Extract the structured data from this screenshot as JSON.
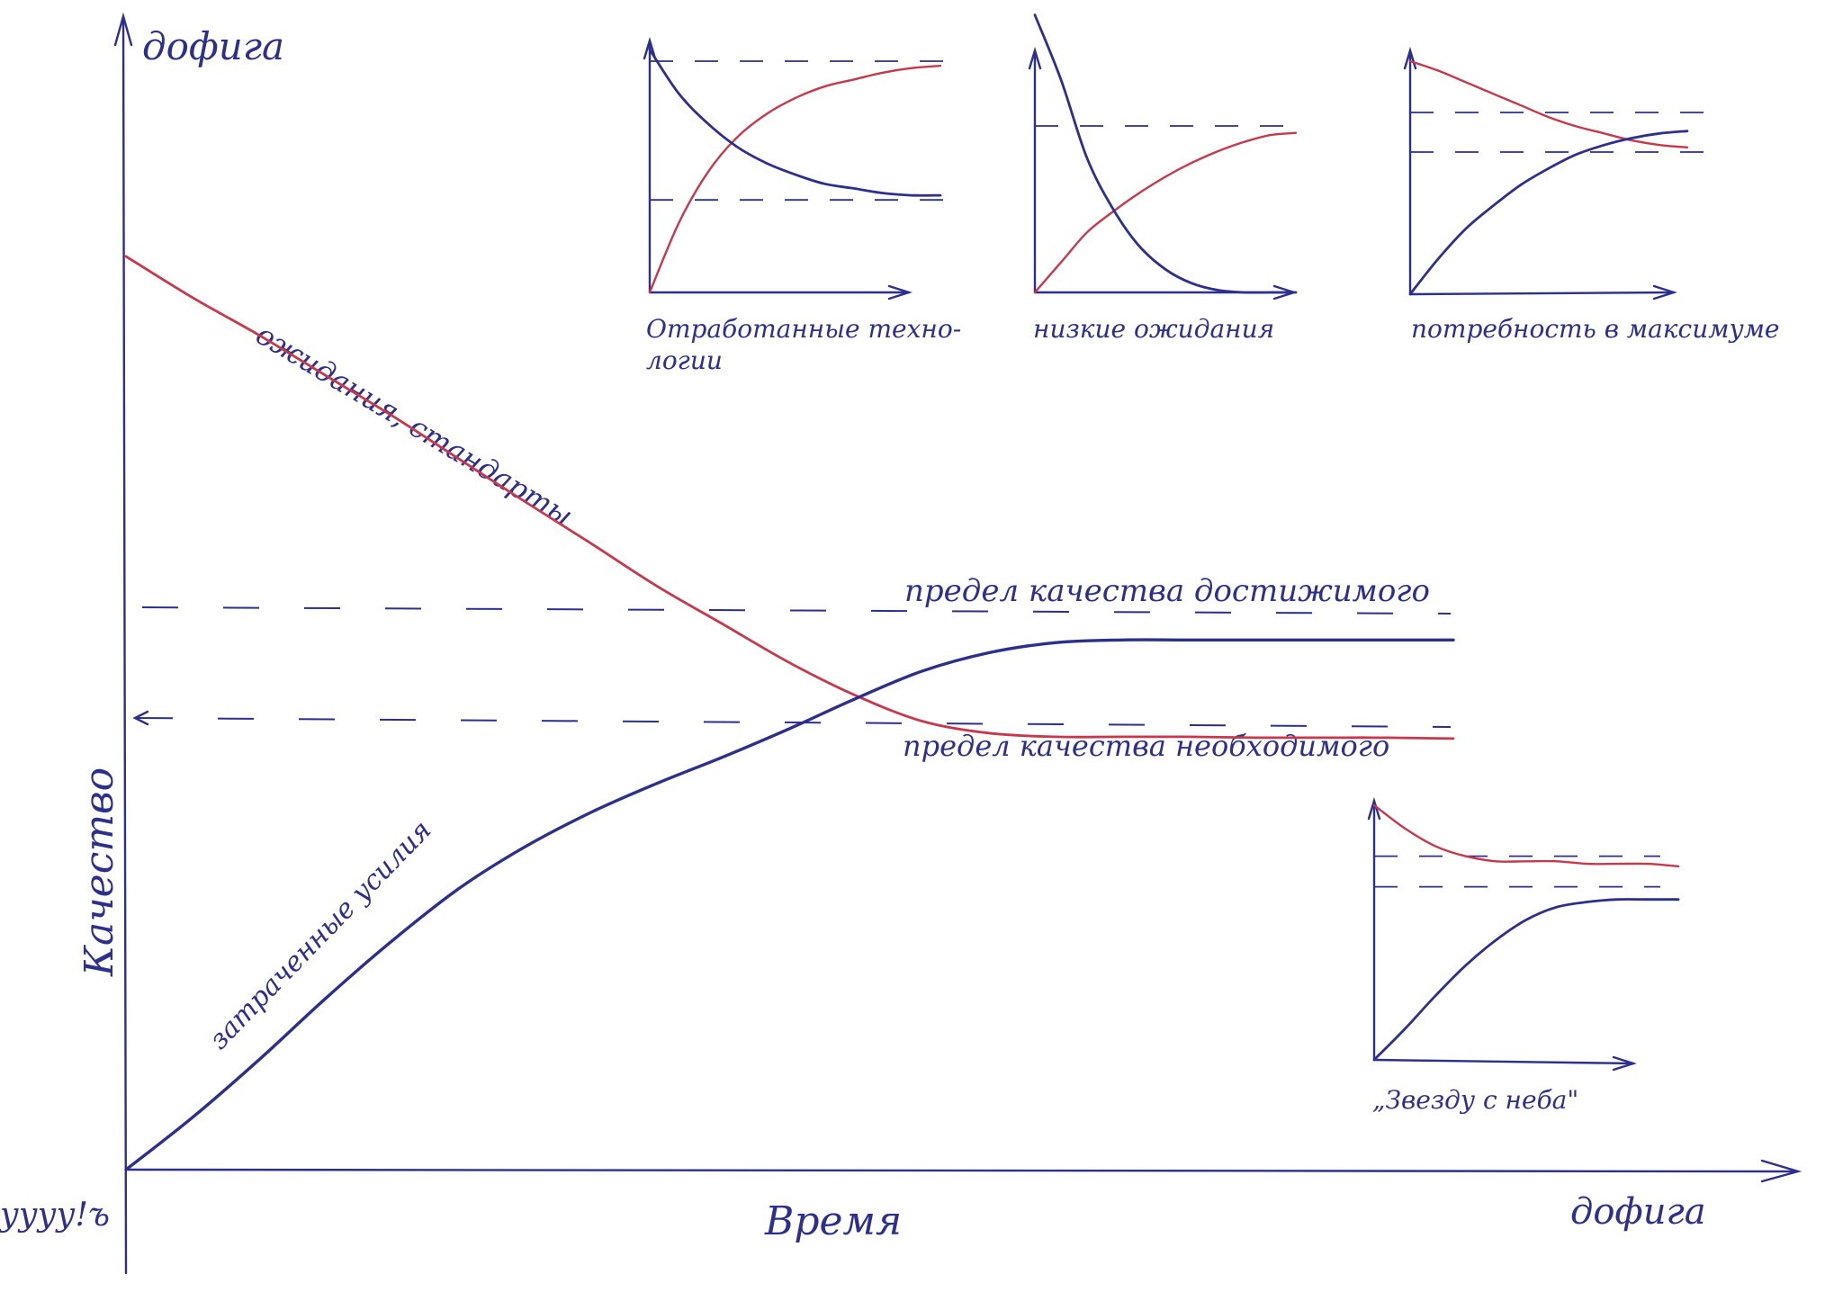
{
  "chart_data": [
    {
      "type": "line",
      "panel": "main",
      "y_top_label": "дофига",
      "ylabel": "Качество",
      "x_origin_label": "уууу!ъ",
      "xlabel": "Время",
      "x_end_label": "дофига",
      "xlim": [
        0,
        1
      ],
      "ylim": [
        0,
        1
      ],
      "grid": false,
      "series": [
        {
          "name": "ожидания, стандарты",
          "color": "#c8384c",
          "x": [
            0,
            0.05,
            0.1,
            0.15,
            0.2,
            0.25,
            0.3,
            0.35,
            0.4,
            0.45,
            0.5,
            0.55,
            0.6,
            0.65,
            0.7,
            0.75,
            0.8,
            0.85,
            0.9,
            0.95,
            1.0
          ],
          "y": [
            1.0,
            0.955,
            0.914,
            0.87,
            0.826,
            0.779,
            0.732,
            0.686,
            0.639,
            0.597,
            0.555,
            0.519,
            0.491,
            0.478,
            0.474,
            0.474,
            0.474,
            0.473,
            0.473,
            0.473,
            0.472
          ]
        },
        {
          "name": "затраченные усилия",
          "color": "#2d2f8c",
          "x": [
            0,
            0.05,
            0.1,
            0.15,
            0.2,
            0.25,
            0.3,
            0.35,
            0.4,
            0.45,
            0.5,
            0.55,
            0.6,
            0.65,
            0.7,
            0.75,
            0.8,
            0.85,
            0.9,
            0.95,
            1.0
          ],
          "y": [
            0.0,
            0.057,
            0.12,
            0.187,
            0.25,
            0.307,
            0.353,
            0.391,
            0.423,
            0.452,
            0.483,
            0.516,
            0.546,
            0.566,
            0.577,
            0.58,
            0.58,
            0.58,
            0.58,
            0.58,
            0.58
          ]
        }
      ],
      "reference_lines": [
        {
          "label": "предел качества достижимого",
          "y": 0.61
        },
        {
          "label": "предел качества необходимого",
          "y": 0.49
        }
      ]
    },
    {
      "type": "line",
      "panel": "inset-1",
      "caption_line1": "Отработанные техно-",
      "caption_line2": "логии",
      "xlim": [
        0,
        1
      ],
      "ylim": [
        0,
        1
      ],
      "series": [
        {
          "color": "#c8384c",
          "x": [
            0,
            0.1,
            0.2,
            0.3,
            0.4,
            0.5,
            0.6,
            0.7,
            0.8,
            0.9,
            1.0
          ],
          "y": [
            0.0,
            0.3,
            0.52,
            0.67,
            0.77,
            0.84,
            0.89,
            0.92,
            0.95,
            0.97,
            0.98
          ]
        },
        {
          "color": "#2d2f8c",
          "x": [
            0,
            0.1,
            0.2,
            0.3,
            0.4,
            0.5,
            0.6,
            0.7,
            0.8,
            0.9,
            1.0
          ],
          "y": [
            1.05,
            0.86,
            0.73,
            0.63,
            0.56,
            0.51,
            0.47,
            0.45,
            0.43,
            0.42,
            0.42
          ]
        }
      ],
      "reference_lines": [
        {
          "y": 1.0
        },
        {
          "y": 0.4
        }
      ]
    },
    {
      "type": "line",
      "panel": "inset-2",
      "caption_line1": "низкие ожидания",
      "xlim": [
        0,
        1
      ],
      "ylim": [
        0,
        1
      ],
      "series": [
        {
          "color": "#c8384c",
          "x": [
            0,
            0.1,
            0.2,
            0.3,
            0.4,
            0.5,
            0.6,
            0.7,
            0.8,
            0.9,
            1.0
          ],
          "y": [
            0.0,
            0.13,
            0.26,
            0.35,
            0.43,
            0.5,
            0.56,
            0.61,
            0.65,
            0.68,
            0.69
          ]
        },
        {
          "color": "#2d2f8c",
          "x": [
            0,
            0.1,
            0.2,
            0.3,
            0.4,
            0.5,
            0.6,
            0.7,
            0.8,
            0.9,
            1.0
          ],
          "y": [
            1.2,
            0.92,
            0.58,
            0.36,
            0.2,
            0.1,
            0.04,
            0.01,
            0.0,
            0.0,
            0.0
          ]
        }
      ],
      "reference_lines": [
        {
          "y": 0.72
        }
      ]
    },
    {
      "type": "line",
      "panel": "inset-3",
      "caption_line1": "потребность в максимуме",
      "xlim": [
        0,
        1
      ],
      "ylim": [
        0,
        1
      ],
      "series": [
        {
          "color": "#c8384c",
          "x": [
            0,
            0.1,
            0.2,
            0.3,
            0.4,
            0.5,
            0.6,
            0.7,
            0.8,
            0.9,
            1.0
          ],
          "y": [
            1.0,
            0.96,
            0.91,
            0.86,
            0.81,
            0.76,
            0.72,
            0.69,
            0.66,
            0.64,
            0.63
          ]
        },
        {
          "color": "#2d2f8c",
          "x": [
            0,
            0.1,
            0.2,
            0.3,
            0.4,
            0.5,
            0.6,
            0.7,
            0.8,
            0.9,
            1.0
          ],
          "y": [
            0.0,
            0.15,
            0.28,
            0.38,
            0.47,
            0.54,
            0.6,
            0.64,
            0.67,
            0.69,
            0.7
          ]
        }
      ],
      "reference_lines": [
        {
          "y": 0.78
        },
        {
          "y": 0.61
        }
      ]
    },
    {
      "type": "line",
      "panel": "inset-4",
      "caption_line1": "„Звезду с неба\"",
      "xlim": [
        0,
        1
      ],
      "ylim": [
        0,
        1
      ],
      "series": [
        {
          "color": "#c8384c",
          "x": [
            0,
            0.1,
            0.2,
            0.3,
            0.4,
            0.5,
            0.6,
            0.7,
            0.8,
            0.9,
            1.0
          ],
          "y": [
            1.0,
            0.91,
            0.84,
            0.8,
            0.78,
            0.78,
            0.78,
            0.77,
            0.77,
            0.77,
            0.76
          ]
        },
        {
          "color": "#2d2f8c",
          "x": [
            0,
            0.1,
            0.2,
            0.3,
            0.4,
            0.5,
            0.6,
            0.7,
            0.8,
            0.9,
            1.0
          ],
          "y": [
            0.0,
            0.12,
            0.25,
            0.37,
            0.47,
            0.55,
            0.6,
            0.62,
            0.63,
            0.63,
            0.63
          ]
        }
      ],
      "reference_lines": [
        {
          "y": 0.8
        },
        {
          "y": 0.68
        }
      ]
    }
  ]
}
